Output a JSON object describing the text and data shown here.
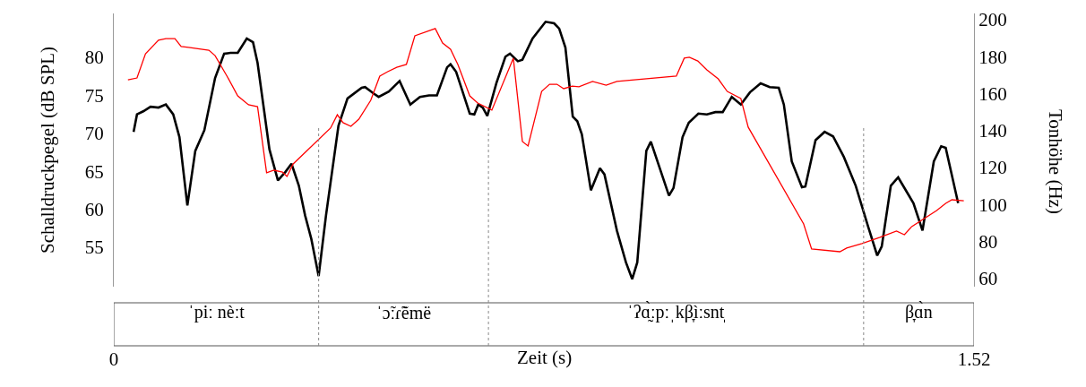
{
  "chart_data": {
    "type": "line",
    "xlabel": "Zeit (s)",
    "ylabel": "Schalldruckpegel (dB SPL)",
    "y2label": "Tonhöhe (Hz)",
    "xlim": [
      0,
      1.52
    ],
    "xticks": [
      0,
      1.52
    ],
    "ylim": [
      49.8,
      85.8
    ],
    "yticks": [
      55,
      60,
      65,
      70,
      75,
      80
    ],
    "y2lim": [
      55.6,
      203.4
    ],
    "y2ticks": [
      60,
      80,
      100,
      120,
      140,
      160,
      180,
      200
    ],
    "marker": "none",
    "line_style": "solid",
    "series": [
      {
        "color": "#000000",
        "x": [
          0.035,
          0.041,
          0.052,
          0.065,
          0.079,
          0.092,
          0.105,
          0.116,
          0.13,
          0.144,
          0.16,
          0.179,
          0.195,
          0.206,
          0.219,
          0.235,
          0.246,
          0.254,
          0.275,
          0.29,
          0.303,
          0.314,
          0.327,
          0.338,
          0.349,
          0.362,
          0.375,
          0.397,
          0.413,
          0.438,
          0.444,
          0.46,
          0.468,
          0.486,
          0.505,
          0.524,
          0.541,
          0.557,
          0.571,
          0.589,
          0.595,
          0.605,
          0.629,
          0.637,
          0.644,
          0.652,
          0.66,
          0.676,
          0.692,
          0.7,
          0.714,
          0.722,
          0.74,
          0.763,
          0.778,
          0.787,
          0.798,
          0.811,
          0.819,
          0.827,
          0.843,
          0.859,
          0.867,
          0.889,
          0.905,
          0.916,
          0.925,
          0.941,
          0.949,
          0.981,
          0.989,
          1.005,
          1.016,
          1.033,
          1.048,
          1.063,
          1.076,
          1.092,
          1.108,
          1.124,
          1.143,
          1.159,
          1.175,
          1.184,
          1.198,
          1.216,
          1.222,
          1.24,
          1.256,
          1.271,
          1.29,
          1.311,
          1.333,
          1.349,
          1.357,
          1.373,
          1.386,
          1.413,
          1.429,
          1.449,
          1.462,
          1.47,
          1.492
        ],
        "values": [
          70.2,
          72.5,
          72.9,
          73.5,
          73.4,
          73.8,
          72.5,
          69.5,
          60.5,
          67.7,
          70.4,
          77.3,
          80.5,
          80.6,
          80.6,
          82.5,
          82.0,
          79.3,
          67.9,
          63.8,
          64.9,
          66.0,
          63.1,
          59.2,
          56.1,
          51.2,
          59.2,
          71.0,
          74.6,
          76.0,
          76.1,
          75.2,
          74.8,
          75.5,
          76.9,
          73.8,
          74.8,
          75.0,
          75.0,
          78.7,
          79.1,
          78.1,
          72.6,
          72.5,
          73.8,
          73.4,
          72.3,
          76.6,
          80.1,
          80.5,
          79.5,
          79.7,
          82.5,
          84.7,
          84.5,
          83.8,
          81.3,
          72.2,
          71.6,
          69.9,
          62.5,
          65.4,
          64.6,
          57.2,
          53.0,
          50.8,
          53.0,
          67.7,
          68.9,
          61.8,
          62.8,
          69.5,
          71.4,
          72.6,
          72.5,
          72.8,
          72.8,
          74.8,
          73.8,
          75.4,
          76.6,
          76.1,
          76.0,
          73.8,
          66.3,
          62.9,
          63.0,
          69.1,
          70.2,
          69.6,
          66.9,
          63.1,
          57.7,
          53.9,
          55.1,
          63.1,
          64.2,
          60.8,
          57.2,
          66.3,
          68.3,
          68.1,
          60.8
        ]
      },
      {
        "color": "#ff0000",
        "axis": "y2",
        "x": [
          0.025,
          0.041,
          0.056,
          0.079,
          0.092,
          0.108,
          0.119,
          0.132,
          0.168,
          0.179,
          0.2,
          0.219,
          0.238,
          0.254,
          0.27,
          0.283,
          0.298,
          0.306,
          0.317,
          0.383,
          0.395,
          0.405,
          0.419,
          0.433,
          0.454,
          0.47,
          0.484,
          0.5,
          0.517,
          0.532,
          0.568,
          0.581,
          0.595,
          0.608,
          0.629,
          0.643,
          0.668,
          0.706,
          0.722,
          0.732,
          0.756,
          0.77,
          0.783,
          0.795,
          0.81,
          0.822,
          0.846,
          0.87,
          0.889,
          0.994,
          1.008,
          1.017,
          1.032,
          1.048,
          1.068,
          1.084,
          1.108,
          1.121,
          1.219,
          1.233,
          1.283,
          1.295,
          1.322,
          1.354,
          1.383,
          1.397,
          1.41,
          1.454,
          1.47,
          1.481,
          1.502
        ],
        "values": [
          167.5,
          168.5,
          181.6,
          188.9,
          189.8,
          189.8,
          185.5,
          185.0,
          183.5,
          180.6,
          169.5,
          158.8,
          154.0,
          153.0,
          117.2,
          118.6,
          117.6,
          115.2,
          122.0,
          141.4,
          148.6,
          144.3,
          142.3,
          146.2,
          156.4,
          169.5,
          171.9,
          174.3,
          175.8,
          191.3,
          195.2,
          187.4,
          184.0,
          175.8,
          158.8,
          154.9,
          151.1,
          179.2,
          134.1,
          131.7,
          161.2,
          165.1,
          165.1,
          162.7,
          164.1,
          163.7,
          166.6,
          164.6,
          166.6,
          169.5,
          179.2,
          179.7,
          177.7,
          172.9,
          168.0,
          161.2,
          157.4,
          141.9,
          89.5,
          76.0,
          74.5,
          76.5,
          78.9,
          82.3,
          85.7,
          83.7,
          88.1,
          96.8,
          100.7,
          102.6,
          102.1
        ]
      }
    ],
    "ref_lines": [
      {
        "axis": "x",
        "value": 0.362,
        "line_style": "dotted",
        "color": "#888888"
      },
      {
        "axis": "x",
        "value": 0.662,
        "line_style": "dotted",
        "color": "#888888"
      },
      {
        "axis": "x",
        "value": 1.325,
        "line_style": "dotted",
        "color": "#888888"
      }
    ],
    "annotations": [
      "ˈpiː nèːt",
      "ˈɔ̃ːɾ̃ẽmë",
      "ˈʔɑ̰̀ːpːˌkβ̞ìːsnt̩",
      "β̞ɑ̀n"
    ]
  }
}
